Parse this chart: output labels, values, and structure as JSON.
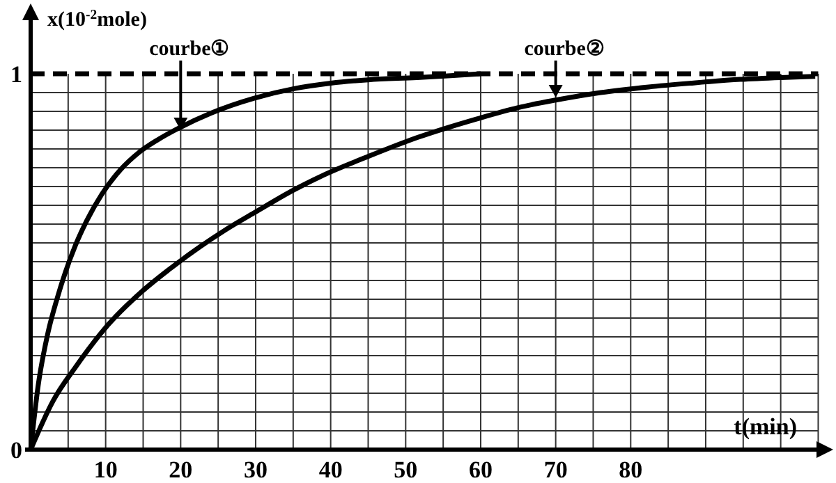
{
  "chart_data": {
    "type": "line",
    "xlabel": "t(min)",
    "ylabel": "x(10$^{-2}$mole)",
    "xlim": [
      0,
      107
    ],
    "ylim": [
      0,
      1.15
    ],
    "xticks": [
      {
        "value": 0,
        "label": null
      },
      10,
      20,
      30,
      40,
      50,
      60,
      70,
      80
    ],
    "yticks": [
      0,
      1
    ],
    "grid": true,
    "line_style": "solid",
    "marker": "none",
    "ref_lines": [
      {
        "axis": "y",
        "value": 1,
        "label": null,
        "line_style": "dashed",
        "color": "#000000"
      }
    ],
    "annotations": [
      {
        "text": "courbe①",
        "x": 20,
        "y": 0.85
      },
      {
        "text": "courbe②",
        "x": 70,
        "y": 0.937
      }
    ],
    "series": [
      {
        "color": "#000000",
        "x": [
          0,
          1,
          2.3,
          3.5,
          4.6,
          6,
          7.5,
          9.5,
          12,
          14.4,
          17,
          19.7,
          24,
          29.8,
          35,
          40,
          45,
          51.5,
          56,
          60
        ],
        "values": [
          0,
          0.17,
          0.31,
          0.4,
          0.47,
          0.545,
          0.61,
          0.68,
          0.745,
          0.79,
          0.825,
          0.855,
          0.895,
          0.935,
          0.96,
          0.975,
          0.984,
          0.99,
          0.995,
          1
        ]
      },
      {
        "color": "#000000",
        "x": [
          0,
          3,
          6,
          9.8,
          14.8,
          18.5,
          22.6,
          26,
          29.8,
          35,
          39,
          45,
          51.5,
          59.5,
          65,
          70,
          76,
          82.4,
          88,
          94.6,
          100,
          104.6
        ],
        "values": [
          0,
          0.13,
          0.22,
          0.32,
          0.42,
          0.48,
          0.54,
          0.585,
          0.63,
          0.69,
          0.73,
          0.78,
          0.83,
          0.88,
          0.91,
          0.93,
          0.95,
          0.965,
          0.975,
          0.985,
          0.99,
          0.993
        ]
      }
    ]
  }
}
